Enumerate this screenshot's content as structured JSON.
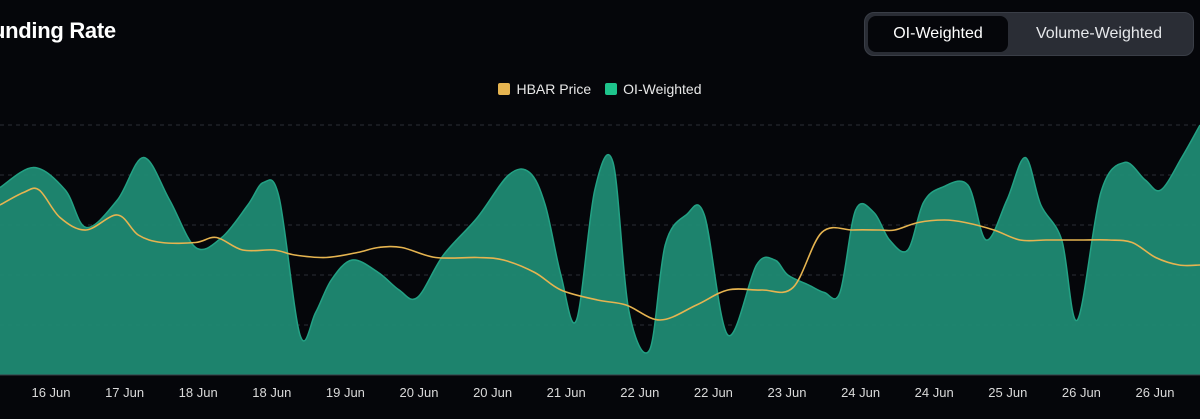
{
  "header": {
    "title": "unding Rate"
  },
  "toggle": {
    "options": [
      "OI-Weighted",
      "Volume-Weighted"
    ],
    "selected": "OI-Weighted"
  },
  "colors": {
    "price": "#e6b450",
    "oi_fill": "#1f8a73",
    "oi_swatch": "#1ec48c",
    "background": "#05060a",
    "grid": "#2a2d35"
  },
  "chart_data": {
    "type": "area",
    "legend_position": "top-center",
    "grid": true,
    "x_tick_labels": [
      "16 Jun",
      "17 Jun",
      "18 Jun",
      "18 Jun",
      "19 Jun",
      "20 Jun",
      "20 Jun",
      "21 Jun",
      "22 Jun",
      "22 Jun",
      "23 Jun",
      "24 Jun",
      "24 Jun",
      "25 Jun",
      "26 Jun",
      "26 Jun"
    ],
    "series": [
      {
        "name": "OI-Weighted",
        "kind": "area",
        "y_range": [
          0,
          100
        ],
        "x": [
          0,
          1.3,
          2.5,
          3.3,
          4.5,
          5.5,
          6.5,
          7.5,
          8.5,
          9.5,
          10.1,
          10.7,
          11.5,
          12.1,
          12.7,
          13.5,
          14.5,
          15.3,
          16,
          17,
          18.3,
          19.5,
          20.3,
          20.9,
          21.5,
          22.1,
          22.8,
          23.5,
          24.1,
          24.9,
          25.5,
          26.3,
          27,
          27.9,
          29,
          29.7,
          30.2,
          31,
          31.6,
          32.2,
          32.8,
          33.5,
          34.1,
          34.8,
          35.4,
          36.1,
          37.1,
          37.8,
          38.6,
          39.3,
          39.9,
          40.7,
          41.3,
          42.2,
          43.1,
          43.9,
          44.5,
          45.3,
          46
        ],
        "y": [
          75,
          83,
          74,
          59,
          70,
          87,
          70,
          51,
          55,
          68,
          77,
          71,
          16,
          25,
          38,
          46,
          41,
          34,
          31,
          48,
          63,
          80,
          81,
          68,
          40,
          22,
          74,
          85,
          26,
          10,
          52,
          64,
          64,
          16,
          44,
          46,
          40,
          36,
          33,
          33,
          66,
          65,
          54,
          50,
          69,
          75,
          76,
          54,
          70,
          87,
          68,
          54,
          22,
          73,
          85,
          78,
          74,
          87,
          100
        ]
      },
      {
        "name": "HBAR Price",
        "kind": "line",
        "y_range": [
          0,
          100
        ],
        "x": [
          0,
          0.9,
          1.5,
          2.3,
          3.3,
          4.5,
          5.3,
          6.2,
          7.5,
          8.3,
          9.3,
          10.5,
          11.3,
          12.5,
          13.7,
          14.5,
          15.4,
          16.7,
          18.3,
          19.3,
          20.5,
          21.5,
          22.9,
          24,
          25.3,
          26.7,
          27.9,
          29.2,
          30.4,
          31.5,
          32.7,
          33.7,
          34.3,
          35.2,
          36.2,
          37,
          38.1,
          39.1,
          40.1,
          41,
          41.5,
          42.5,
          43.4,
          44.3,
          45.2,
          46
        ],
        "y": [
          68,
          73,
          74,
          63,
          58,
          64,
          56,
          53,
          53,
          55,
          50,
          50,
          48,
          47,
          49,
          51,
          51,
          47,
          47,
          46,
          41,
          34,
          30,
          28,
          22,
          28,
          34,
          34,
          35,
          57,
          58,
          58,
          58,
          61,
          62,
          61,
          58,
          54,
          54,
          54,
          54,
          54,
          53,
          47,
          44,
          44
        ]
      }
    ]
  }
}
